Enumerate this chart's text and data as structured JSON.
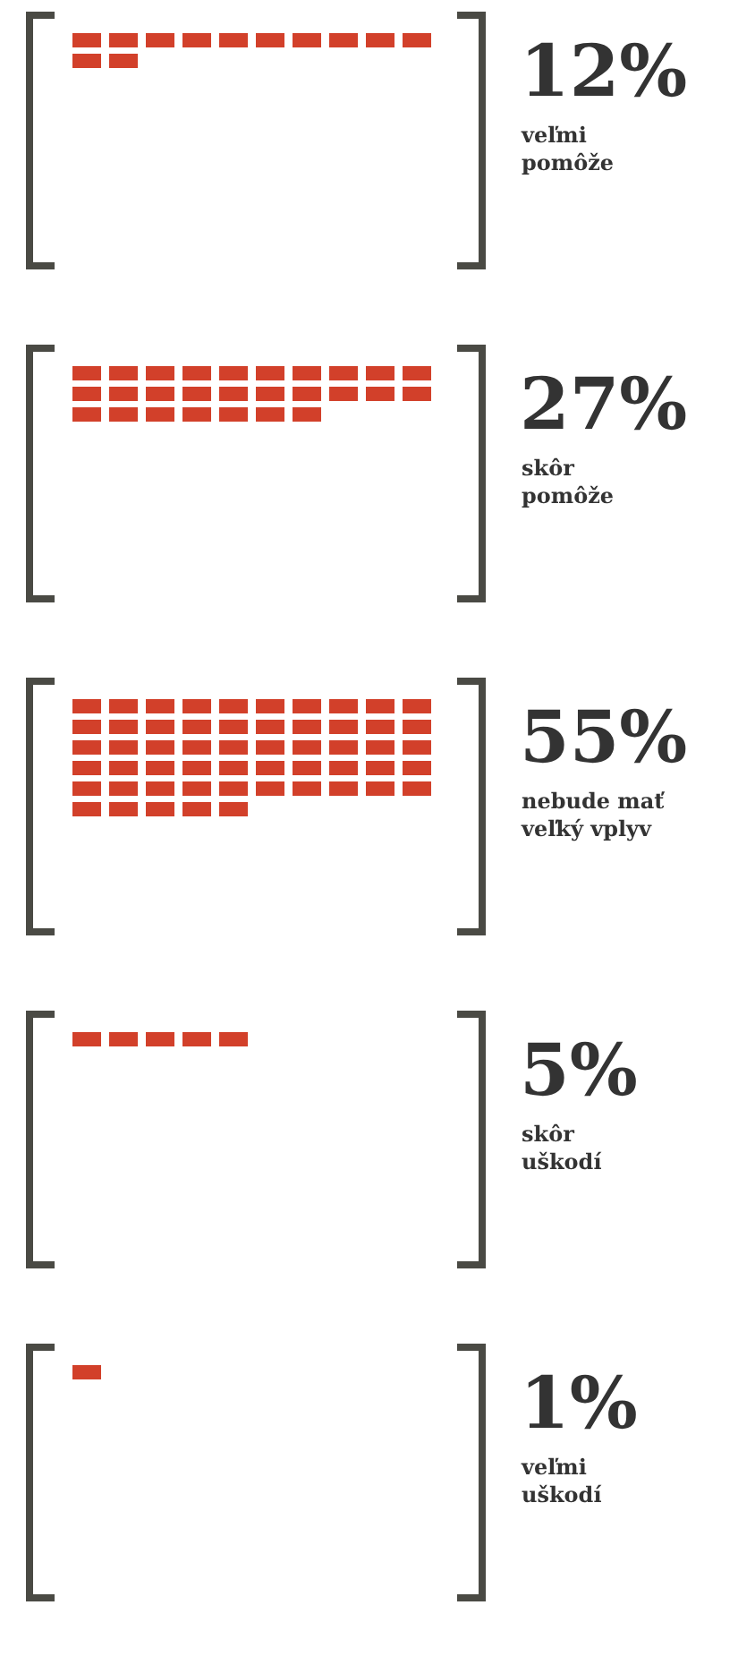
{
  "chart_data": {
    "type": "other",
    "categories": [
      "veľmi\npomôže",
      "skôr\npomôže",
      "nebude mať\nveľký vplyv",
      "skôr\nuškodí",
      "veľmi\nuškodí"
    ],
    "values": [
      12,
      27,
      55,
      5,
      1
    ],
    "value_labels": [
      "12%",
      "27%",
      "55%",
      "5%",
      "1%"
    ],
    "color": "#d2402a"
  }
}
